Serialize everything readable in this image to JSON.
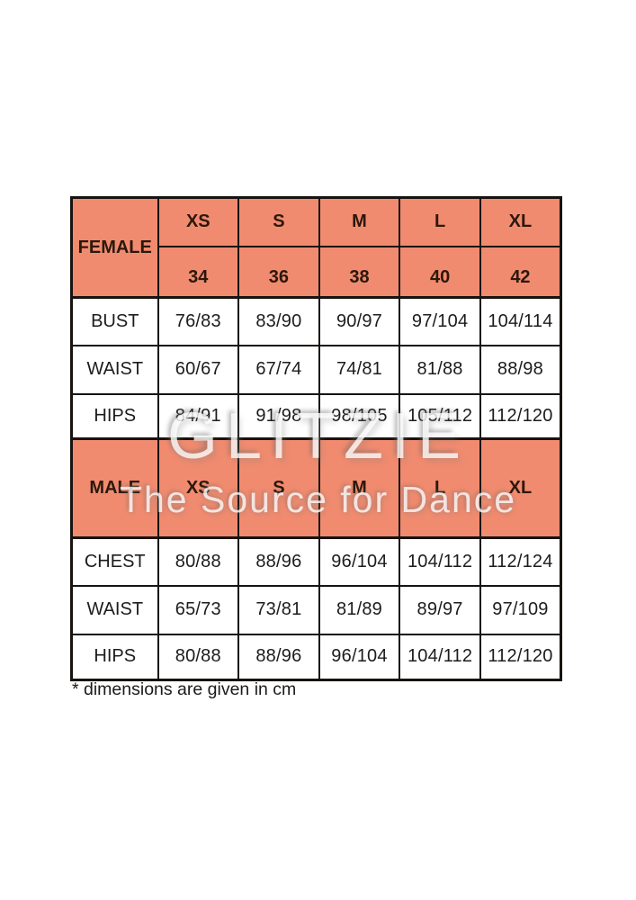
{
  "watermark": {
    "line1": "GLITZIE",
    "line2": "The Source for Dance"
  },
  "footnote": "* dimensions are given in cm",
  "colors": {
    "header_bg": "#F18B6F",
    "border": "#171310",
    "header_text": "#2B180C",
    "body_text": "#1C1C1C",
    "page_bg": "#FFFFFF"
  },
  "female": {
    "label": "FEMALE",
    "sizes": [
      "XS",
      "S",
      "M",
      "L",
      "XL"
    ],
    "size_numbers": [
      "34",
      "36",
      "38",
      "40",
      "42"
    ],
    "rows": [
      {
        "label": "BUST",
        "values": [
          "76/83",
          "83/90",
          "90/97",
          "97/104",
          "104/114"
        ]
      },
      {
        "label": "WAIST",
        "values": [
          "60/67",
          "67/74",
          "74/81",
          "81/88",
          "88/98"
        ]
      },
      {
        "label": "HIPS",
        "values": [
          "84/91",
          "91/98",
          "98/105",
          "105/112",
          "112/120"
        ]
      }
    ]
  },
  "male": {
    "label": "MALE",
    "sizes": [
      "XS",
      "S",
      "M",
      "L",
      "XL"
    ],
    "rows": [
      {
        "label": "CHEST",
        "values": [
          "80/88",
          "88/96",
          "96/104",
          "104/112",
          "112/124"
        ]
      },
      {
        "label": "WAIST",
        "values": [
          "65/73",
          "73/81",
          "81/89",
          "89/97",
          "97/109"
        ]
      },
      {
        "label": "HIPS",
        "values": [
          "80/88",
          "88/96",
          "96/104",
          "104/112",
          "112/120"
        ]
      }
    ]
  }
}
